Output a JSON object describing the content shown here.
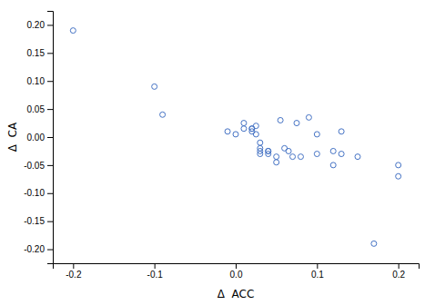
{
  "chart_data": {
    "type": "scatter",
    "x": [
      -0.2,
      -0.1,
      -0.09,
      -0.01,
      0.0,
      0.01,
      0.01,
      0.02,
      0.02,
      0.02,
      0.025,
      0.025,
      0.03,
      0.03,
      0.03,
      0.03,
      0.04,
      0.04,
      0.04,
      0.05,
      0.05,
      0.055,
      0.06,
      0.065,
      0.07,
      0.075,
      0.08,
      0.09,
      0.1,
      0.1,
      0.12,
      0.12,
      0.13,
      0.13,
      0.15,
      0.17,
      0.2,
      0.2
    ],
    "y": [
      0.19,
      0.09,
      0.04,
      0.01,
      0.005,
      0.025,
      0.015,
      0.015,
      0.01,
      0.015,
      0.02,
      0.005,
      -0.02,
      -0.025,
      -0.03,
      -0.01,
      -0.025,
      -0.025,
      -0.03,
      -0.035,
      -0.045,
      0.03,
      -0.02,
      -0.025,
      -0.035,
      0.025,
      -0.035,
      0.035,
      -0.03,
      0.005,
      -0.05,
      -0.025,
      0.01,
      -0.03,
      -0.035,
      -0.19,
      -0.07,
      -0.05
    ],
    "color": "#4472C4",
    "marker": "open-circle",
    "x_label": "Δ  ACC",
    "y_label": "Δ  CA",
    "xlim": [
      -0.225,
      0.225
    ],
    "ylim": [
      -0.225,
      0.225
    ],
    "xticks": [
      -0.2,
      -0.1,
      {
        "value": 0.0,
        "label": "0.0"
      },
      0.1,
      0.2
    ],
    "yticks": [
      {
        "value": -0.2,
        "label": "-0.20"
      },
      -0.15,
      {
        "value": -0.1,
        "label": "-0.10"
      },
      -0.05,
      {
        "value": 0.0,
        "label": "0.00"
      },
      0.05,
      {
        "value": 0.1,
        "label": "0.10"
      },
      0.15,
      {
        "value": 0.2,
        "label": "0.20"
      }
    ]
  }
}
